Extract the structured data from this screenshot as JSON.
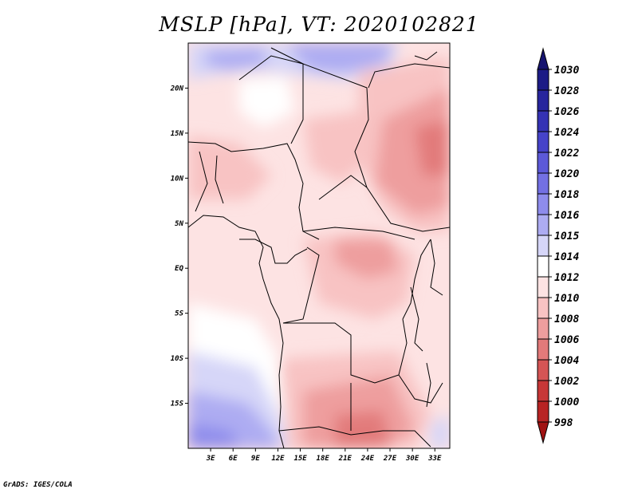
{
  "title": "MSLP [hPa], VT: 2020102821",
  "credit": "GrADS: IGES/COLA",
  "map": {
    "lon_range": [
      0,
      35
    ],
    "lat_range": [
      -20,
      25
    ],
    "lat_ticks": [
      {
        "value": 20,
        "label": "20N"
      },
      {
        "value": 15,
        "label": "15N"
      },
      {
        "value": 10,
        "label": "10N"
      },
      {
        "value": 5,
        "label": "5N"
      },
      {
        "value": 0,
        "label": "EQ"
      },
      {
        "value": -5,
        "label": "5S"
      },
      {
        "value": -10,
        "label": "10S"
      },
      {
        "value": -15,
        "label": "15S"
      }
    ],
    "lon_ticks": [
      {
        "value": 3,
        "label": "3E"
      },
      {
        "value": 6,
        "label": "6E"
      },
      {
        "value": 9,
        "label": "9E"
      },
      {
        "value": 12,
        "label": "12E"
      },
      {
        "value": 15,
        "label": "15E"
      },
      {
        "value": 18,
        "label": "18E"
      },
      {
        "value": 21,
        "label": "21E"
      },
      {
        "value": 24,
        "label": "24E"
      },
      {
        "value": 27,
        "label": "27E"
      },
      {
        "value": 30,
        "label": "30E"
      },
      {
        "value": 33,
        "label": "33E"
      }
    ]
  },
  "colorbar": {
    "levels": [
      {
        "label": "1030",
        "color": "#1c1b86"
      },
      {
        "label": "1028",
        "color": "#27259d"
      },
      {
        "label": "1026",
        "color": "#3532b4"
      },
      {
        "label": "1024",
        "color": "#4643c9"
      },
      {
        "label": "1022",
        "color": "#5c59d8"
      },
      {
        "label": "1020",
        "color": "#7370e3"
      },
      {
        "label": "1018",
        "color": "#8e8cec"
      },
      {
        "label": "1016",
        "color": "#adacf2"
      },
      {
        "label": "1015",
        "color": "#d6d6f8"
      },
      {
        "label": "1014",
        "color": "#ffffff"
      },
      {
        "label": "1012",
        "color": "#fde3e3"
      },
      {
        "label": "1010",
        "color": "#f8c3c3"
      },
      {
        "label": "1008",
        "color": "#ee9e9e"
      },
      {
        "label": "1006",
        "color": "#e27a7a"
      },
      {
        "label": "1004",
        "color": "#d55555"
      },
      {
        "label": "1002",
        "color": "#c73737"
      },
      {
        "label": "1000",
        "color": "#b82424"
      },
      {
        "label": "998",
        "color": "#a81818"
      }
    ],
    "top_cap_color": "#161470",
    "bottom_cap_color": "#a01212"
  }
}
